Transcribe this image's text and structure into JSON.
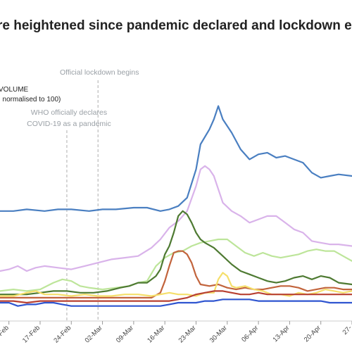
{
  "chart_data": {
    "type": "line",
    "title": "re heightened since pandemic declared and lockdown e",
    "legend_lines": [
      "VOLUME",
      ", normalised to 100)"
    ],
    "annotations": [
      {
        "text": [
          "Official lockdown begins"
        ],
        "x": 16
      },
      {
        "text": [
          "WHO officially declares",
          "COVID-19 as a pandemic"
        ],
        "x": 9
      }
    ],
    "x_tick_labels": [
      "Feb",
      "17-Feb",
      "24-Feb",
      "02-Mar",
      "09-Mar",
      "16-Mar",
      "23-Mar",
      "30-Mar",
      "06-Apr",
      "13-Apr",
      "20-Apr",
      "27-"
    ],
    "x_ticks": [
      -4,
      3,
      10,
      17,
      24,
      31,
      38,
      45,
      52,
      59,
      66,
      73
    ],
    "xlim": [
      -6,
      73
    ],
    "ylim": [
      0,
      125
    ],
    "series": [
      {
        "color": "#4a7fc1",
        "points": [
          [
            -6,
            55
          ],
          [
            -3,
            55
          ],
          [
            0,
            56
          ],
          [
            4,
            55
          ],
          [
            7,
            56
          ],
          [
            10,
            56
          ],
          [
            14,
            55
          ],
          [
            17,
            56
          ],
          [
            20,
            56
          ],
          [
            24,
            57
          ],
          [
            27,
            57
          ],
          [
            30,
            55
          ],
          [
            32,
            56
          ],
          [
            34,
            58
          ],
          [
            36,
            63
          ],
          [
            38,
            80
          ],
          [
            39,
            95
          ],
          [
            41,
            104
          ],
          [
            42,
            110
          ],
          [
            43,
            118
          ],
          [
            44,
            110
          ],
          [
            46,
            102
          ],
          [
            48,
            92
          ],
          [
            50,
            86
          ],
          [
            52,
            89
          ],
          [
            54,
            90
          ],
          [
            56,
            87
          ],
          [
            58,
            88
          ],
          [
            60,
            86
          ],
          [
            62,
            84
          ],
          [
            64,
            78
          ],
          [
            66,
            75
          ],
          [
            68,
            76
          ],
          [
            70,
            77
          ],
          [
            73,
            76
          ]
        ]
      },
      {
        "color": "#d9b3ea",
        "points": [
          [
            -6,
            19
          ],
          [
            -4,
            20
          ],
          [
            -2,
            22
          ],
          [
            0,
            19
          ],
          [
            2,
            21
          ],
          [
            4,
            22
          ],
          [
            7,
            21
          ],
          [
            10,
            20
          ],
          [
            13,
            22
          ],
          [
            16,
            24
          ],
          [
            19,
            26
          ],
          [
            22,
            27
          ],
          [
            25,
            28
          ],
          [
            28,
            33
          ],
          [
            30,
            38
          ],
          [
            32,
            45
          ],
          [
            34,
            49
          ],
          [
            36,
            55
          ],
          [
            38,
            70
          ],
          [
            39,
            80
          ],
          [
            40,
            82
          ],
          [
            41,
            80
          ],
          [
            42,
            76
          ],
          [
            44,
            60
          ],
          [
            46,
            55
          ],
          [
            48,
            52
          ],
          [
            50,
            48
          ],
          [
            52,
            50
          ],
          [
            54,
            52
          ],
          [
            56,
            52
          ],
          [
            58,
            48
          ],
          [
            60,
            44
          ],
          [
            62,
            42
          ],
          [
            64,
            37
          ],
          [
            66,
            36
          ],
          [
            68,
            35
          ],
          [
            70,
            35
          ],
          [
            73,
            34
          ]
        ]
      },
      {
        "color": "#bde59a",
        "points": [
          [
            -6,
            7
          ],
          [
            -3,
            8
          ],
          [
            0,
            7
          ],
          [
            3,
            8
          ],
          [
            6,
            12
          ],
          [
            8,
            14
          ],
          [
            10,
            13
          ],
          [
            12,
            10
          ],
          [
            14,
            9
          ],
          [
            17,
            8
          ],
          [
            20,
            9
          ],
          [
            23,
            10
          ],
          [
            25,
            12
          ],
          [
            27,
            13
          ],
          [
            29,
            22
          ],
          [
            31,
            27
          ],
          [
            33,
            30
          ],
          [
            35,
            31
          ],
          [
            37,
            34
          ],
          [
            39,
            36
          ],
          [
            41,
            37
          ],
          [
            43,
            38
          ],
          [
            45,
            38
          ],
          [
            47,
            34
          ],
          [
            49,
            30
          ],
          [
            51,
            28
          ],
          [
            53,
            30
          ],
          [
            55,
            28
          ],
          [
            57,
            27
          ],
          [
            59,
            28
          ],
          [
            61,
            29
          ],
          [
            63,
            31
          ],
          [
            65,
            32
          ],
          [
            67,
            31
          ],
          [
            69,
            31
          ],
          [
            71,
            28
          ],
          [
            73,
            25
          ]
        ]
      },
      {
        "color": "#4e7a32",
        "points": [
          [
            -6,
            5
          ],
          [
            -3,
            5
          ],
          [
            0,
            5
          ],
          [
            3,
            6
          ],
          [
            6,
            7
          ],
          [
            9,
            7
          ],
          [
            12,
            6
          ],
          [
            15,
            6
          ],
          [
            18,
            7
          ],
          [
            21,
            9
          ],
          [
            23,
            10
          ],
          [
            25,
            12
          ],
          [
            27,
            12
          ],
          [
            29,
            16
          ],
          [
            30,
            20
          ],
          [
            31,
            29
          ],
          [
            32,
            34
          ],
          [
            33,
            42
          ],
          [
            34,
            52
          ],
          [
            35,
            55
          ],
          [
            36,
            53
          ],
          [
            37,
            48
          ],
          [
            38,
            42
          ],
          [
            39,
            38
          ],
          [
            40,
            36
          ],
          [
            42,
            33
          ],
          [
            44,
            28
          ],
          [
            46,
            23
          ],
          [
            48,
            19
          ],
          [
            50,
            17
          ],
          [
            52,
            15
          ],
          [
            54,
            13
          ],
          [
            56,
            12
          ],
          [
            58,
            13
          ],
          [
            60,
            15
          ],
          [
            62,
            16
          ],
          [
            64,
            14
          ],
          [
            66,
            16
          ],
          [
            68,
            15
          ],
          [
            70,
            12
          ],
          [
            73,
            11
          ]
        ]
      },
      {
        "color": "#c2643c",
        "points": [
          [
            -6,
            3
          ],
          [
            0,
            3
          ],
          [
            5,
            3
          ],
          [
            10,
            3
          ],
          [
            15,
            3
          ],
          [
            20,
            3
          ],
          [
            25,
            3
          ],
          [
            28,
            3
          ],
          [
            30,
            6
          ],
          [
            31,
            13
          ],
          [
            32,
            22
          ],
          [
            33,
            30
          ],
          [
            34,
            31
          ],
          [
            35,
            31
          ],
          [
            36,
            29
          ],
          [
            37,
            24
          ],
          [
            38,
            16
          ],
          [
            39,
            11
          ],
          [
            41,
            10
          ],
          [
            43,
            11
          ],
          [
            45,
            9
          ],
          [
            47,
            8
          ],
          [
            49,
            9
          ],
          [
            51,
            8
          ],
          [
            53,
            8
          ],
          [
            55,
            9
          ],
          [
            57,
            10
          ],
          [
            59,
            10
          ],
          [
            61,
            9
          ],
          [
            63,
            7
          ],
          [
            65,
            8
          ],
          [
            67,
            9
          ],
          [
            69,
            9
          ],
          [
            71,
            8
          ],
          [
            73,
            8
          ]
        ]
      },
      {
        "color": "#f5df6b",
        "points": [
          [
            -6,
            4
          ],
          [
            -3,
            4
          ],
          [
            0,
            6
          ],
          [
            2,
            7
          ],
          [
            4,
            5
          ],
          [
            7,
            5
          ],
          [
            10,
            4
          ],
          [
            13,
            5
          ],
          [
            16,
            4
          ],
          [
            19,
            4
          ],
          [
            22,
            5
          ],
          [
            25,
            5
          ],
          [
            28,
            4
          ],
          [
            30,
            5
          ],
          [
            32,
            6
          ],
          [
            34,
            5
          ],
          [
            36,
            5
          ],
          [
            38,
            4
          ],
          [
            40,
            6
          ],
          [
            42,
            6
          ],
          [
            43,
            14
          ],
          [
            44,
            18
          ],
          [
            45,
            16
          ],
          [
            46,
            10
          ],
          [
            47,
            9
          ],
          [
            49,
            10
          ],
          [
            51,
            8
          ],
          [
            53,
            7
          ],
          [
            55,
            5
          ],
          [
            57,
            5
          ],
          [
            59,
            4
          ],
          [
            61,
            6
          ],
          [
            63,
            5
          ],
          [
            65,
            6
          ],
          [
            67,
            8
          ],
          [
            69,
            7
          ],
          [
            71,
            6
          ],
          [
            73,
            7
          ]
        ]
      },
      {
        "color": "#b84032",
        "points": [
          [
            -6,
            1
          ],
          [
            -3,
            1
          ],
          [
            0,
            0
          ],
          [
            3,
            1
          ],
          [
            6,
            1
          ],
          [
            9,
            1
          ],
          [
            12,
            1
          ],
          [
            15,
            1
          ],
          [
            18,
            1
          ],
          [
            21,
            1
          ],
          [
            24,
            1
          ],
          [
            27,
            1
          ],
          [
            30,
            1
          ],
          [
            32,
            1
          ],
          [
            34,
            2
          ],
          [
            36,
            3
          ],
          [
            38,
            5
          ],
          [
            40,
            6
          ],
          [
            42,
            7
          ],
          [
            44,
            7
          ],
          [
            46,
            6
          ],
          [
            48,
            5
          ],
          [
            50,
            5
          ],
          [
            52,
            6
          ],
          [
            54,
            5
          ],
          [
            56,
            5
          ],
          [
            58,
            5
          ],
          [
            60,
            5
          ],
          [
            62,
            5
          ],
          [
            64,
            5
          ],
          [
            66,
            5
          ],
          [
            68,
            5
          ],
          [
            70,
            5
          ],
          [
            73,
            5
          ]
        ]
      },
      {
        "color": "#2f55d0",
        "points": [
          [
            -6,
            0
          ],
          [
            -4,
            0
          ],
          [
            -2,
            -2
          ],
          [
            0,
            -1
          ],
          [
            2,
            -1
          ],
          [
            4,
            0
          ],
          [
            6,
            0
          ],
          [
            8,
            -1
          ],
          [
            10,
            -2
          ],
          [
            12,
            -2
          ],
          [
            15,
            -2
          ],
          [
            18,
            -2
          ],
          [
            21,
            -2
          ],
          [
            24,
            -2
          ],
          [
            27,
            -2
          ],
          [
            30,
            -2
          ],
          [
            32,
            -1
          ],
          [
            34,
            0
          ],
          [
            36,
            0
          ],
          [
            38,
            0
          ],
          [
            40,
            1
          ],
          [
            42,
            1
          ],
          [
            44,
            2
          ],
          [
            46,
            2
          ],
          [
            48,
            2
          ],
          [
            50,
            2
          ],
          [
            52,
            1
          ],
          [
            54,
            1
          ],
          [
            56,
            1
          ],
          [
            58,
            1
          ],
          [
            60,
            1
          ],
          [
            62,
            1
          ],
          [
            64,
            1
          ],
          [
            66,
            1
          ],
          [
            68,
            0
          ],
          [
            70,
            0
          ],
          [
            73,
            0
          ]
        ]
      }
    ]
  }
}
